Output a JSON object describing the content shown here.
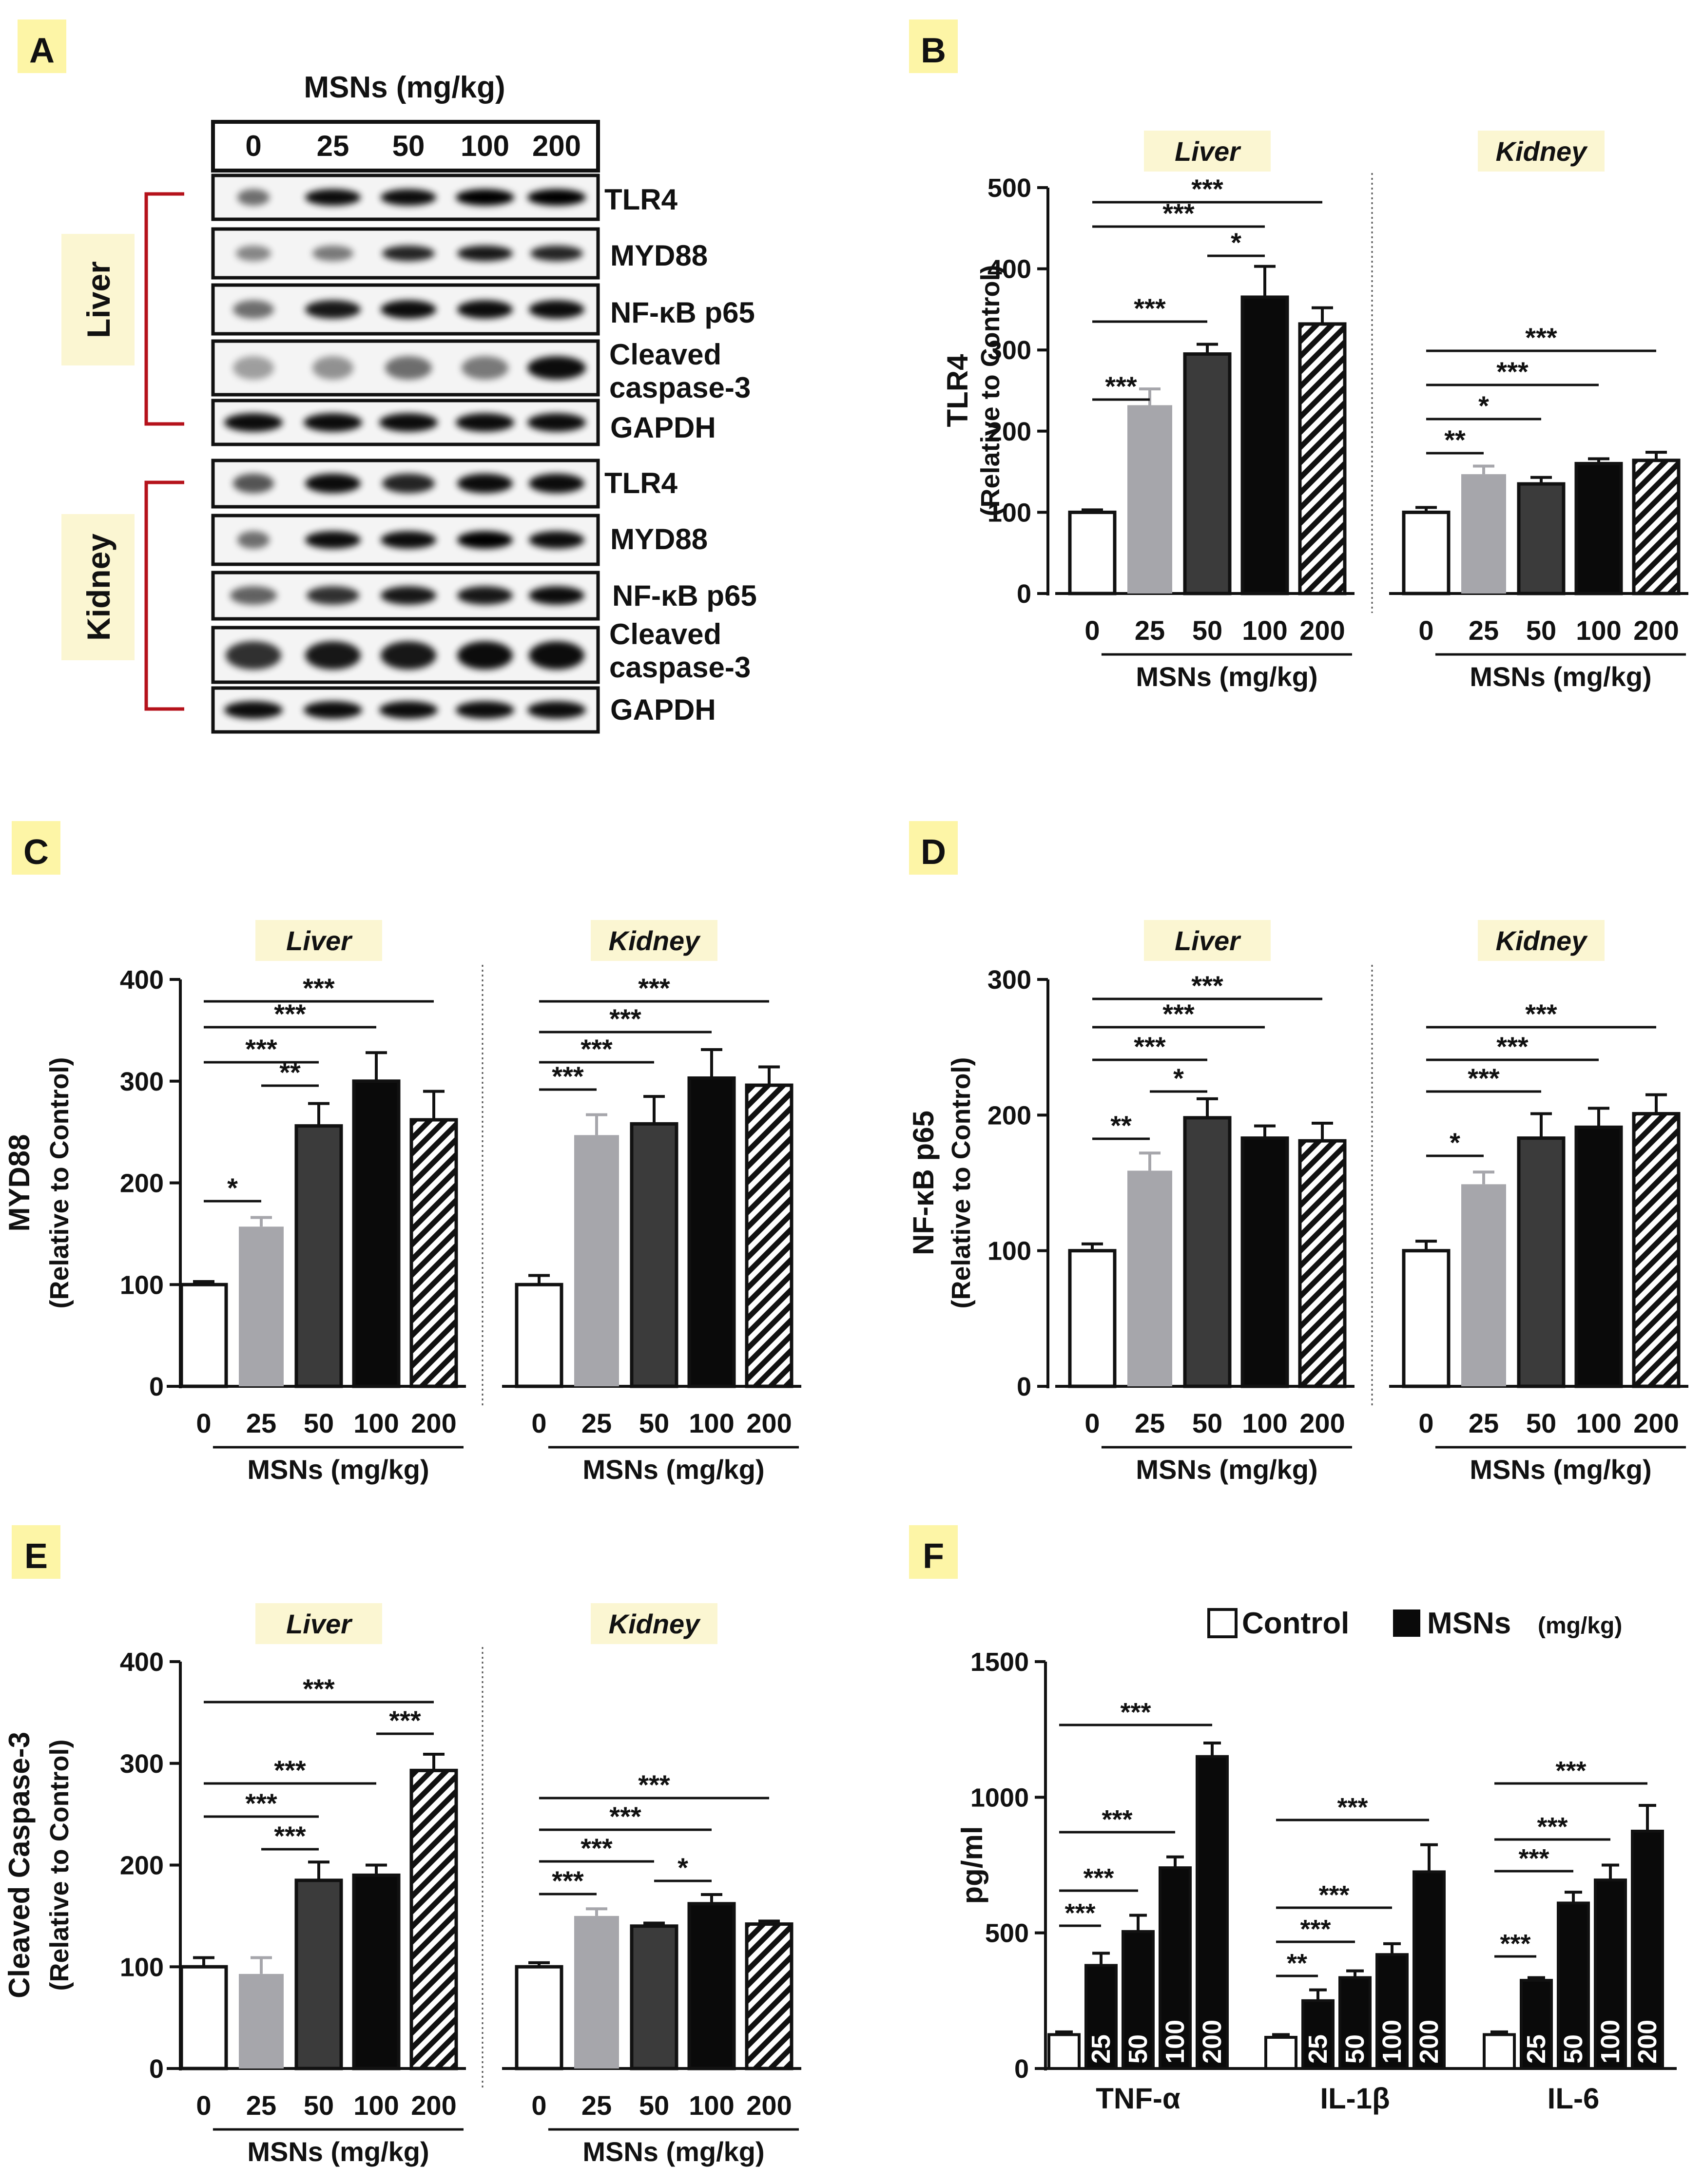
{
  "colors": {
    "label_box": "#fdf5a6",
    "tissue_box": "#fbf6d2",
    "bracket": "#b5121b",
    "bar_control": "#ffffff",
    "bar_25": "#a6a6ab",
    "bar_50": "#3b3b3b",
    "bar_100": "#0a0a0a",
    "bar_200_hatch": "#111111",
    "axis": "#111111"
  },
  "panels": {
    "A": {
      "label": "A",
      "title": "MSNs (mg/kg)",
      "doses": [
        "0",
        "25",
        "50",
        "100",
        "200"
      ],
      "liver_label": "Liver",
      "kidney_label": "Kidney",
      "liver_bands": [
        "TLR4",
        "MYD88",
        "NF-κB p65",
        "Cleaved\ncaspase-3",
        "GAPDH"
      ],
      "kidney_bands": [
        "TLR4",
        "MYD88",
        "NF-κB p65",
        "Cleaved\ncaspase-3",
        "GAPDH"
      ]
    },
    "B": {
      "label": "B"
    },
    "C": {
      "label": "C"
    },
    "D": {
      "label": "D"
    },
    "E": {
      "label": "E"
    },
    "F": {
      "label": "F"
    }
  },
  "chart_data": [
    {
      "panel": "B",
      "type": "bar",
      "ylabel": "TLR4",
      "ylabel2": "(Relative to Control)",
      "ylim": [
        0,
        500
      ],
      "yticks": [
        0,
        100,
        200,
        300,
        400,
        500
      ],
      "xlabel": "MSNs (mg/kg)",
      "categories": [
        "0",
        "25",
        "50",
        "100",
        "200"
      ],
      "groups": [
        {
          "name": "Liver",
          "values": [
            100,
            232,
            295,
            365,
            332
          ],
          "errors": [
            3,
            20,
            12,
            38,
            20
          ],
          "sig": [
            {
              "a": 0,
              "b": 1,
              "s": "***"
            },
            {
              "a": 0,
              "b": 2,
              "s": "***"
            },
            {
              "a": 2,
              "b": 3,
              "s": "*"
            },
            {
              "a": 0,
              "b": 3,
              "s": "***"
            },
            {
              "a": 0,
              "b": 4,
              "s": "***"
            }
          ]
        },
        {
          "name": "Kidney",
          "values": [
            100,
            147,
            135,
            160,
            164
          ],
          "errors": [
            6,
            10,
            8,
            6,
            10
          ],
          "sig": [
            {
              "a": 0,
              "b": 1,
              "s": "**"
            },
            {
              "a": 0,
              "b": 2,
              "s": "*"
            },
            {
              "a": 0,
              "b": 3,
              "s": "***"
            },
            {
              "a": 0,
              "b": 4,
              "s": "***"
            }
          ]
        }
      ]
    },
    {
      "panel": "C",
      "type": "bar",
      "ylabel": "MYD88",
      "ylabel2": "(Relative to Control)",
      "ylim": [
        0,
        400
      ],
      "yticks": [
        0,
        100,
        200,
        300,
        400
      ],
      "xlabel": "MSNs (mg/kg)",
      "categories": [
        "0",
        "25",
        "50",
        "100",
        "200"
      ],
      "groups": [
        {
          "name": "Liver",
          "values": [
            100,
            157,
            256,
            300,
            262
          ],
          "errors": [
            3,
            9,
            22,
            28,
            28
          ],
          "sig": [
            {
              "a": 0,
              "b": 1,
              "s": "*"
            },
            {
              "a": 1,
              "b": 2,
              "s": "**"
            },
            {
              "a": 0,
              "b": 2,
              "s": "***"
            },
            {
              "a": 0,
              "b": 3,
              "s": "***"
            },
            {
              "a": 0,
              "b": 4,
              "s": "***"
            }
          ]
        },
        {
          "name": "Kidney",
          "values": [
            100,
            247,
            258,
            303,
            296
          ],
          "errors": [
            9,
            20,
            27,
            28,
            18
          ],
          "sig": [
            {
              "a": 0,
              "b": 1,
              "s": "***"
            },
            {
              "a": 0,
              "b": 2,
              "s": "***"
            },
            {
              "a": 0,
              "b": 3,
              "s": "***"
            },
            {
              "a": 0,
              "b": 4,
              "s": "***"
            }
          ]
        }
      ]
    },
    {
      "panel": "D",
      "type": "bar",
      "ylabel": "NF-κB p65",
      "ylabel2": "(Relative to Control)",
      "ylim": [
        0,
        300
      ],
      "yticks": [
        0,
        100,
        200,
        300
      ],
      "xlabel": "MSNs (mg/kg)",
      "categories": [
        "0",
        "25",
        "50",
        "100",
        "200"
      ],
      "groups": [
        {
          "name": "Liver",
          "values": [
            100,
            159,
            198,
            183,
            181
          ],
          "errors": [
            5,
            13,
            14,
            9,
            13
          ],
          "sig": [
            {
              "a": 0,
              "b": 1,
              "s": "**"
            },
            {
              "a": 1,
              "b": 2,
              "s": "*"
            },
            {
              "a": 0,
              "b": 2,
              "s": "***"
            },
            {
              "a": 0,
              "b": 3,
              "s": "***"
            },
            {
              "a": 0,
              "b": 4,
              "s": "***"
            }
          ]
        },
        {
          "name": "Kidney",
          "values": [
            100,
            149,
            183,
            191,
            201
          ],
          "errors": [
            7,
            9,
            18,
            14,
            14
          ],
          "sig": [
            {
              "a": 0,
              "b": 1,
              "s": "*"
            },
            {
              "a": 0,
              "b": 2,
              "s": "***"
            },
            {
              "a": 0,
              "b": 3,
              "s": "***"
            },
            {
              "a": 0,
              "b": 4,
              "s": "***"
            }
          ]
        }
      ]
    },
    {
      "panel": "E",
      "type": "bar",
      "ylabel": "Cleaved Caspase-3",
      "ylabel2": "(Relative to Control)",
      "ylim": [
        0,
        400
      ],
      "yticks": [
        0,
        100,
        200,
        300,
        400
      ],
      "xlabel": "MSNs (mg/kg)",
      "categories": [
        "0",
        "25",
        "50",
        "100",
        "200"
      ],
      "groups": [
        {
          "name": "Liver",
          "values": [
            100,
            93,
            185,
            190,
            293
          ],
          "errors": [
            9,
            16,
            18,
            10,
            16
          ],
          "sig": [
            {
              "a": 1,
              "b": 2,
              "s": "***"
            },
            {
              "a": 0,
              "b": 2,
              "s": "***"
            },
            {
              "a": 0,
              "b": 3,
              "s": "***"
            },
            {
              "a": 3,
              "b": 4,
              "s": "***"
            },
            {
              "a": 0,
              "b": 4,
              "s": "***"
            }
          ]
        },
        {
          "name": "Kidney",
          "values": [
            100,
            150,
            140,
            162,
            142
          ],
          "errors": [
            4,
            7,
            3,
            9,
            3
          ],
          "sig": [
            {
              "a": 0,
              "b": 1,
              "s": "***"
            },
            {
              "a": 2,
              "b": 3,
              "s": "*"
            },
            {
              "a": 0,
              "b": 2,
              "s": "***"
            },
            {
              "a": 0,
              "b": 3,
              "s": "***"
            },
            {
              "a": 0,
              "b": 4,
              "s": "***"
            }
          ]
        }
      ]
    },
    {
      "panel": "F",
      "type": "bar",
      "ylabel": "pg/ml",
      "ylim": [
        0,
        1500
      ],
      "yticks": [
        0,
        500,
        1000,
        1500
      ],
      "legend": [
        {
          "name": "Control",
          "color": "#ffffff"
        },
        {
          "name": "MSNs",
          "suffix": "(mg/kg)",
          "color": "#0a0a0a"
        }
      ],
      "groups": [
        {
          "name": "TNF-α",
          "values": [
            125,
            380,
            505,
            740,
            1150
          ],
          "errors": [
            10,
            45,
            60,
            40,
            50
          ],
          "labels": [
            "",
            "25",
            "50",
            "100",
            "200"
          ],
          "sig": [
            {
              "a": 0,
              "b": 1,
              "s": "***"
            },
            {
              "a": 0,
              "b": 2,
              "s": "***"
            },
            {
              "a": 0,
              "b": 3,
              "s": "***"
            },
            {
              "a": 0,
              "b": 4,
              "s": "***"
            }
          ]
        },
        {
          "name": "IL-1β",
          "values": [
            115,
            250,
            335,
            420,
            725
          ],
          "errors": [
            10,
            40,
            25,
            40,
            100
          ],
          "labels": [
            "",
            "25",
            "50",
            "100",
            "200"
          ],
          "sig": [
            {
              "a": 0,
              "b": 1,
              "s": "**"
            },
            {
              "a": 0,
              "b": 2,
              "s": "***"
            },
            {
              "a": 0,
              "b": 3,
              "s": "***"
            },
            {
              "a": 0,
              "b": 4,
              "s": "***"
            }
          ]
        },
        {
          "name": "IL-6",
          "values": [
            125,
            325,
            610,
            695,
            875
          ],
          "errors": [
            10,
            10,
            40,
            55,
            95
          ],
          "labels": [
            "",
            "25",
            "50",
            "100",
            "200"
          ],
          "sig": [
            {
              "a": 0,
              "b": 1,
              "s": "***"
            },
            {
              "a": 0,
              "b": 2,
              "s": "***"
            },
            {
              "a": 0,
              "b": 3,
              "s": "***"
            },
            {
              "a": 0,
              "b": 4,
              "s": "***"
            }
          ]
        }
      ]
    }
  ]
}
